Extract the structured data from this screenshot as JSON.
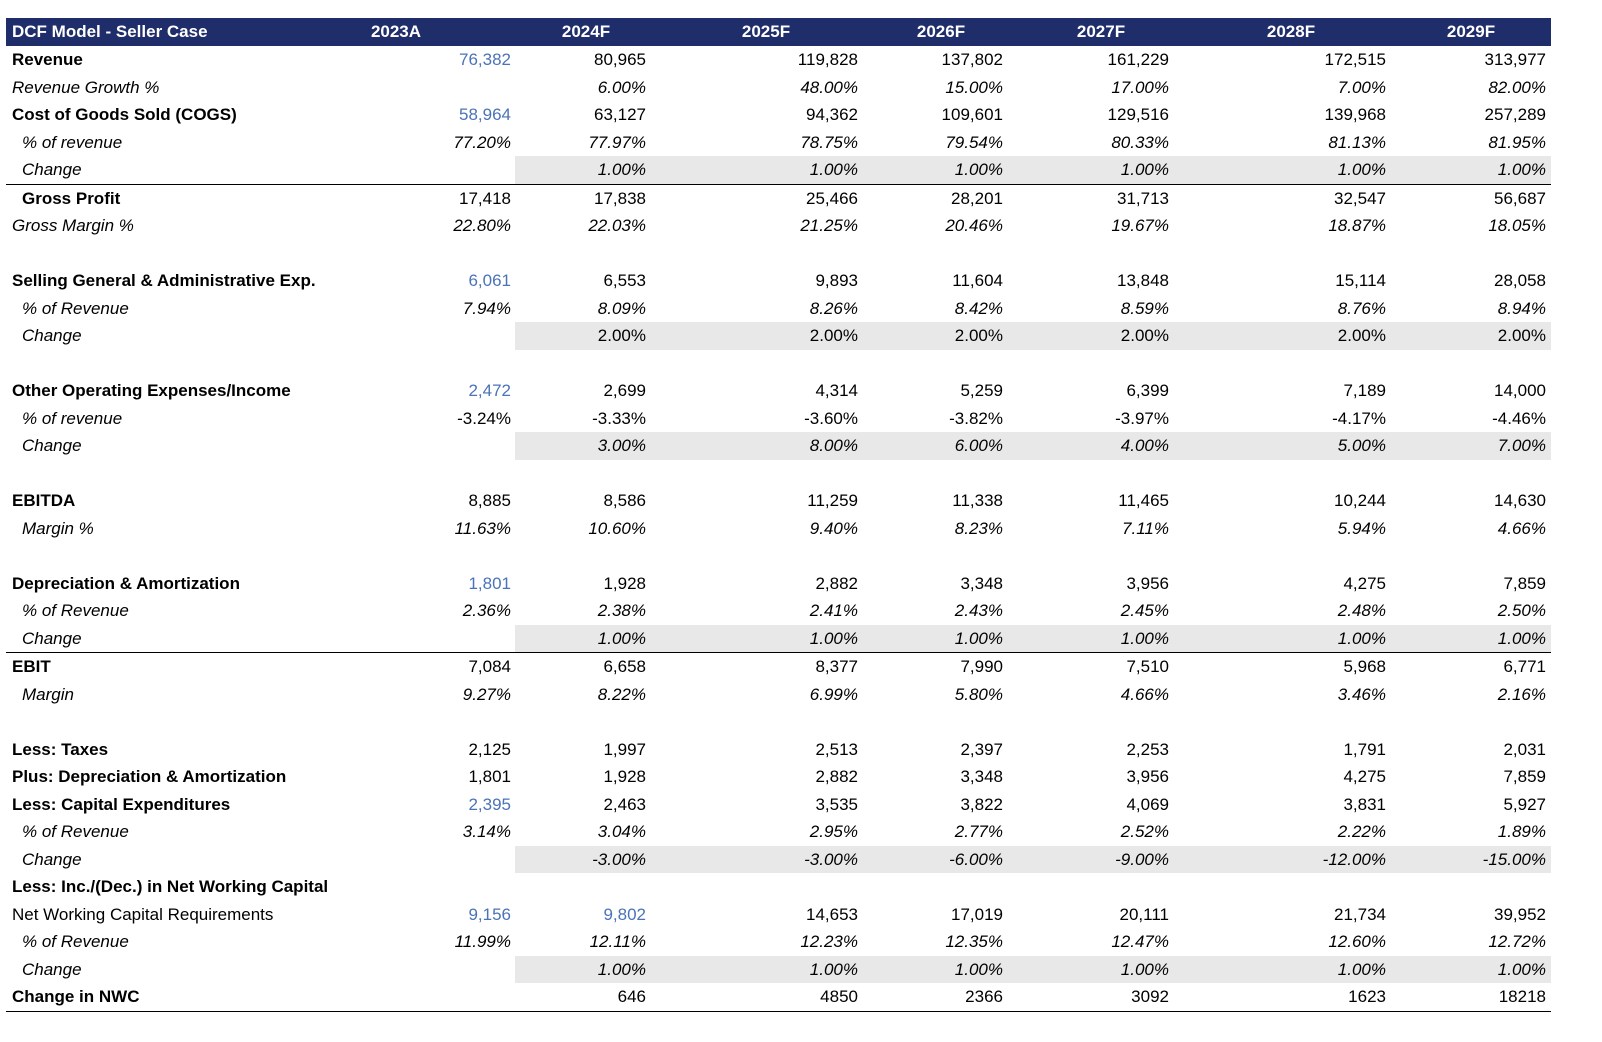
{
  "title": "DCF Model - Seller Case",
  "years": [
    "2023A",
    "2024F",
    "2025F",
    "2026F",
    "2027F",
    "2028F",
    "2029F"
  ],
  "rows": [
    {
      "label": "Revenue",
      "style": "bold",
      "vals": [
        "76,382",
        "80,965",
        "119,828",
        "137,802",
        "161,229",
        "172,515",
        "313,977"
      ],
      "blue": [
        0
      ]
    },
    {
      "label": "Revenue Growth %",
      "style": "italic",
      "vals": [
        "",
        "6.00%",
        "48.00%",
        "15.00%",
        "17.00%",
        "7.00%",
        "82.00%"
      ]
    },
    {
      "label": "Cost of Goods Sold (COGS)",
      "style": "bold",
      "vals": [
        "58,964",
        "63,127",
        "94,362",
        "109,601",
        "129,516",
        "139,968",
        "257,289"
      ],
      "blue": [
        0
      ]
    },
    {
      "label": "% of revenue",
      "style": "italic",
      "indent": true,
      "vals": [
        "77.20%",
        "77.97%",
        "78.75%",
        "79.54%",
        "80.33%",
        "81.13%",
        "81.95%"
      ]
    },
    {
      "label": "Change",
      "style": "italic",
      "indent": true,
      "shaded": true,
      "bottomborder": true,
      "vals": [
        "",
        "1.00%",
        "1.00%",
        "1.00%",
        "1.00%",
        "1.00%",
        "1.00%"
      ]
    },
    {
      "label": "Gross Profit",
      "style": "bold",
      "indent": true,
      "vals": [
        "17,418",
        "17,838",
        "25,466",
        "28,201",
        "31,713",
        "32,547",
        "56,687"
      ]
    },
    {
      "label": "Gross Margin %",
      "style": "italic",
      "vals": [
        "22.80%",
        "22.03%",
        "21.25%",
        "20.46%",
        "19.67%",
        "18.87%",
        "18.05%"
      ]
    },
    {
      "label": "",
      "vals": [
        "",
        "",
        "",
        "",
        "",
        "",
        ""
      ]
    },
    {
      "label": "Selling General & Administrative Exp.",
      "style": "bold",
      "vals": [
        "6,061",
        "6,553",
        "9,893",
        "11,604",
        "13,848",
        "15,114",
        "28,058"
      ],
      "blue": [
        0
      ]
    },
    {
      "label": "% of Revenue",
      "style": "italic",
      "indent": true,
      "vals": [
        "7.94%",
        "8.09%",
        "8.26%",
        "8.42%",
        "8.59%",
        "8.76%",
        "8.94%"
      ]
    },
    {
      "label": "Change",
      "style": "italic",
      "indent": true,
      "shaded": true,
      "vals": [
        "",
        "2.00%",
        "2.00%",
        "2.00%",
        "2.00%",
        "2.00%",
        "2.00%"
      ],
      "upright": true
    },
    {
      "label": "",
      "vals": [
        "",
        "",
        "",
        "",
        "",
        "",
        ""
      ]
    },
    {
      "label": "Other Operating Expenses/Income",
      "style": "bold",
      "vals": [
        "2,472",
        "2,699",
        "4,314",
        "5,259",
        "6,399",
        "7,189",
        "14,000"
      ],
      "blue": [
        0
      ]
    },
    {
      "label": "% of revenue",
      "style": "italic",
      "indent": true,
      "vals": [
        "-3.24%",
        "-3.33%",
        "-3.60%",
        "-3.82%",
        "-3.97%",
        "-4.17%",
        "-4.46%"
      ],
      "upright": true
    },
    {
      "label": "Change",
      "style": "italic",
      "indent": true,
      "shaded": true,
      "vals": [
        "",
        "3.00%",
        "8.00%",
        "6.00%",
        "4.00%",
        "5.00%",
        "7.00%"
      ]
    },
    {
      "label": "",
      "vals": [
        "",
        "",
        "",
        "",
        "",
        "",
        ""
      ]
    },
    {
      "label": "EBITDA",
      "style": "bold",
      "vals": [
        "8,885",
        "8,586",
        "11,259",
        "11,338",
        "11,465",
        "10,244",
        "14,630"
      ]
    },
    {
      "label": "Margin %",
      "style": "italic",
      "indent": true,
      "vals": [
        "11.63%",
        "10.60%",
        "9.40%",
        "8.23%",
        "7.11%",
        "5.94%",
        "4.66%"
      ]
    },
    {
      "label": "",
      "vals": [
        "",
        "",
        "",
        "",
        "",
        "",
        ""
      ]
    },
    {
      "label": "Depreciation & Amortization",
      "style": "bold",
      "vals": [
        "1,801",
        "1,928",
        "2,882",
        "3,348",
        "3,956",
        "4,275",
        "7,859"
      ],
      "blue": [
        0
      ]
    },
    {
      "label": "% of Revenue",
      "style": "italic",
      "indent": true,
      "vals": [
        "2.36%",
        "2.38%",
        "2.41%",
        "2.43%",
        "2.45%",
        "2.48%",
        "2.50%"
      ]
    },
    {
      "label": "Change",
      "style": "italic",
      "indent": true,
      "shaded": true,
      "bottomborder": true,
      "vals": [
        "",
        "1.00%",
        "1.00%",
        "1.00%",
        "1.00%",
        "1.00%",
        "1.00%"
      ]
    },
    {
      "label": "EBIT",
      "style": "bold",
      "vals": [
        "7,084",
        "6,658",
        "8,377",
        "7,990",
        "7,510",
        "5,968",
        "6,771"
      ]
    },
    {
      "label": "Margin",
      "style": "italic",
      "indent": true,
      "vals": [
        "9.27%",
        "8.22%",
        "6.99%",
        "5.80%",
        "4.66%",
        "3.46%",
        "2.16%"
      ]
    },
    {
      "label": "",
      "vals": [
        "",
        "",
        "",
        "",
        "",
        "",
        ""
      ]
    },
    {
      "label": "Less: Taxes",
      "style": "bold",
      "vals": [
        "2,125",
        "1,997",
        "2,513",
        "2,397",
        "2,253",
        "1,791",
        "2,031"
      ]
    },
    {
      "label": "Plus: Depreciation & Amortization",
      "style": "bold",
      "vals": [
        "1,801",
        "1,928",
        "2,882",
        "3,348",
        "3,956",
        "4,275",
        "7,859"
      ]
    },
    {
      "label": "Less: Capital Expenditures",
      "style": "bold",
      "vals": [
        "2,395",
        "2,463",
        "3,535",
        "3,822",
        "4,069",
        "3,831",
        "5,927"
      ],
      "blue": [
        0
      ]
    },
    {
      "label": "% of Revenue",
      "style": "italic",
      "indent": true,
      "vals": [
        "3.14%",
        "3.04%",
        "2.95%",
        "2.77%",
        "2.52%",
        "2.22%",
        "1.89%"
      ]
    },
    {
      "label": "Change",
      "style": "italic",
      "indent": true,
      "shaded": true,
      "vals": [
        "",
        "-3.00%",
        "-3.00%",
        "-6.00%",
        "-9.00%",
        "-12.00%",
        "-15.00%"
      ]
    },
    {
      "label": "Less: Inc./(Dec.) in Net Working Capital",
      "style": "bold",
      "vals": [
        "",
        "",
        "",
        "",
        "",
        "",
        ""
      ]
    },
    {
      "label": "Net Working Capital Requirements",
      "style": "normal",
      "vals": [
        "9,156",
        "9,802",
        "14,653",
        "17,019",
        "20,111",
        "21,734",
        "39,952"
      ],
      "blue": [
        0,
        1
      ]
    },
    {
      "label": "% of Revenue",
      "style": "italic",
      "indent": true,
      "vals": [
        "11.99%",
        "12.11%",
        "12.23%",
        "12.35%",
        "12.47%",
        "12.60%",
        "12.72%"
      ]
    },
    {
      "label": "Change",
      "style": "italic",
      "indent": true,
      "shaded": true,
      "vals": [
        "",
        "1.00%",
        "1.00%",
        "1.00%",
        "1.00%",
        "1.00%",
        "1.00%"
      ]
    },
    {
      "label": "Change in NWC",
      "style": "bold",
      "bottomborder": true,
      "vals": [
        "",
        "646",
        "4850",
        "2366",
        "3092",
        "1623",
        "18218"
      ]
    }
  ]
}
